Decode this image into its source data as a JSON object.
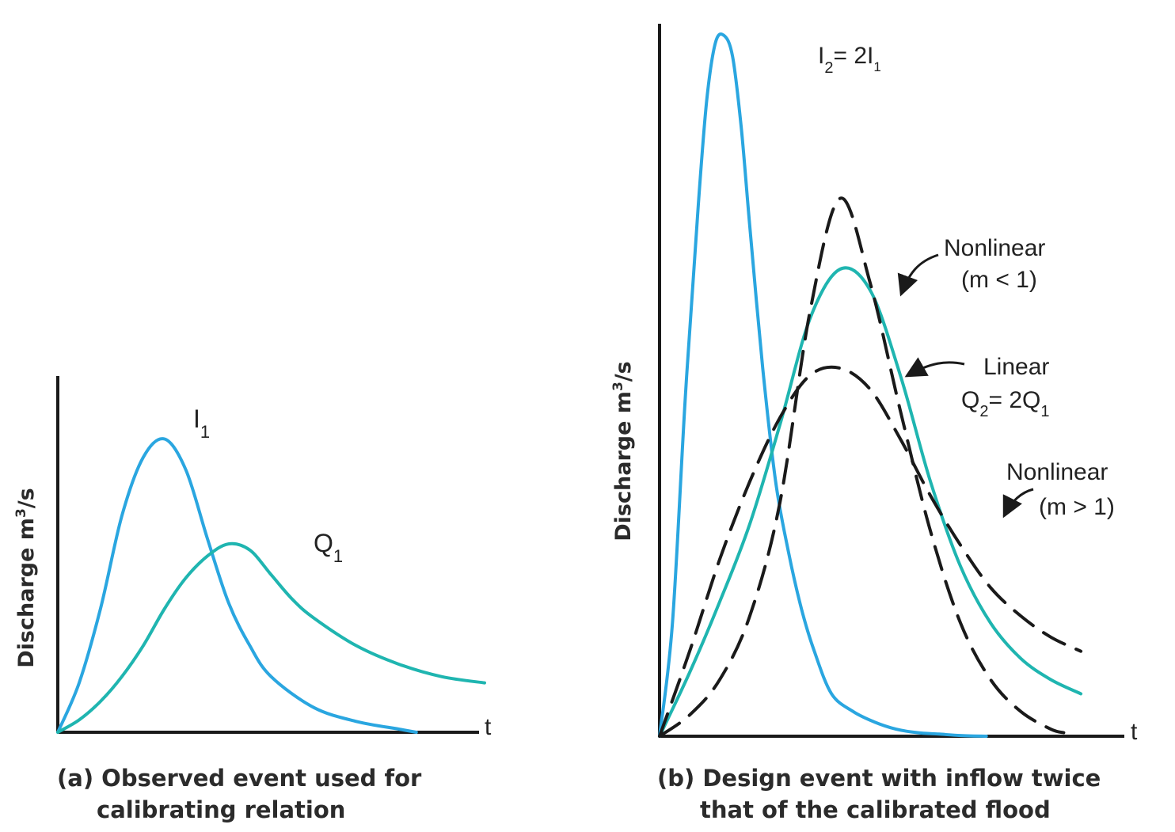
{
  "chart_data": [
    {
      "type": "line",
      "ylabel": "Discharge m³/s",
      "ylabel_main": "Discharge m",
      "ylabel_sup": "3",
      "ylabel_tail": "/s",
      "xlabel": "t",
      "caption_line1": "(a) Observed event used for",
      "caption_line2": "calibrating relation",
      "grid": false,
      "x_range": [
        0,
        10
      ],
      "y_range": [
        0,
        10
      ],
      "series": [
        {
          "name": "I1",
          "label_main": "I",
          "label_sub": "1",
          "color": "#2aa6e0",
          "style": "solid",
          "x": [
            0,
            0.5,
            1,
            1.5,
            2,
            2.5,
            3,
            3.5,
            4,
            4.5,
            5,
            6,
            7,
            8,
            8.4
          ],
          "y": [
            0,
            1.6,
            4.0,
            7.0,
            8.9,
            9.5,
            8.5,
            6.3,
            4.2,
            2.8,
            1.8,
            0.8,
            0.35,
            0.1,
            0
          ]
        },
        {
          "name": "Q1",
          "label_main": "Q",
          "label_sub": "1",
          "color": "#1fb5b0",
          "style": "solid",
          "x": [
            0,
            0.5,
            1,
            1.5,
            2,
            2.5,
            3,
            3.5,
            4,
            4.5,
            5,
            5.5,
            6,
            7,
            8,
            9,
            10
          ],
          "y": [
            0,
            0.4,
            1.0,
            1.8,
            2.8,
            4.0,
            5.0,
            5.7,
            6.1,
            5.9,
            5.1,
            4.3,
            3.7,
            2.8,
            2.2,
            1.8,
            1.6
          ]
        }
      ]
    },
    {
      "type": "line",
      "ylabel": "Discharge m³/s",
      "ylabel_main": "Discharge m",
      "ylabel_sup": "3",
      "ylabel_tail": "/s",
      "xlabel": "t",
      "caption_line1": "(b) Design event with inflow twice",
      "caption_line2": "that of the calibrated flood",
      "grid": false,
      "x_range": [
        0,
        10
      ],
      "y_range": [
        0,
        10
      ],
      "series": [
        {
          "name": "I2 = 2I1",
          "label_main": "I",
          "label_sub": "2",
          "label_eq": "=  2I",
          "label_eq_sub": "1",
          "color": "#2aa6e0",
          "style": "solid",
          "x": [
            0,
            0.3,
            0.6,
            0.9,
            1.1,
            1.3,
            1.5,
            1.7,
            1.9,
            2.1,
            2.4,
            2.7,
            3.0,
            3.3,
            3.6,
            4.0,
            4.5,
            5.0,
            5.5,
            6.0,
            6.5,
            7.0,
            7.6
          ],
          "y": [
            0,
            1.6,
            4.8,
            7.5,
            9.0,
            9.8,
            9.9,
            9.6,
            8.6,
            7.2,
            5.2,
            3.6,
            2.6,
            1.8,
            1.2,
            0.6,
            0.35,
            0.2,
            0.1,
            0.05,
            0.03,
            0.01,
            0
          ]
        },
        {
          "name": "Linear",
          "label_line1": "Linear",
          "label_q_main": "Q",
          "label_q_sub": "2",
          "label_q_eq": "=  2Q",
          "label_q_eq_sub": "1",
          "color": "#1fb5b0",
          "style": "solid",
          "x": [
            0,
            0.7,
            1.4,
            2.1,
            2.8,
            3.5,
            4.2,
            4.9,
            5.6,
            6.3,
            7.0,
            7.7,
            8.4,
            9.1,
            9.8
          ],
          "y": [
            0,
            0.9,
            1.9,
            3.0,
            4.4,
            5.9,
            6.6,
            6.3,
            5.1,
            3.6,
            2.4,
            1.6,
            1.1,
            0.8,
            0.6
          ]
        },
        {
          "name": "Nonlinear (m < 1)",
          "label_line1": "Nonlinear",
          "label_line2": "(m <  1)",
          "color": "#1a1a1a",
          "style": "dashed",
          "x": [
            0,
            0.7,
            1.4,
            2.1,
            2.8,
            3.5,
            4.2,
            4.9,
            5.6,
            6.3,
            7.0,
            7.7,
            8.4,
            9.1,
            9.4
          ],
          "y": [
            0,
            0.3,
            0.8,
            1.7,
            3.3,
            6.0,
            7.6,
            6.4,
            4.6,
            2.9,
            1.6,
            0.8,
            0.35,
            0.1,
            0.05
          ]
        },
        {
          "name": "Nonlinear (m > 1)",
          "label_line1": "Nonlinear",
          "label_line2": "(m > 1)",
          "color": "#1a1a1a",
          "style": "dashed",
          "x": [
            0,
            0.7,
            1.4,
            2.1,
            2.8,
            3.5,
            4.2,
            4.9,
            5.6,
            6.3,
            7.0,
            7.7,
            8.4,
            9.1,
            9.8
          ],
          "y": [
            0,
            1.2,
            2.5,
            3.6,
            4.5,
            5.1,
            5.2,
            4.9,
            4.2,
            3.4,
            2.7,
            2.1,
            1.7,
            1.4,
            1.2
          ]
        }
      ]
    }
  ]
}
